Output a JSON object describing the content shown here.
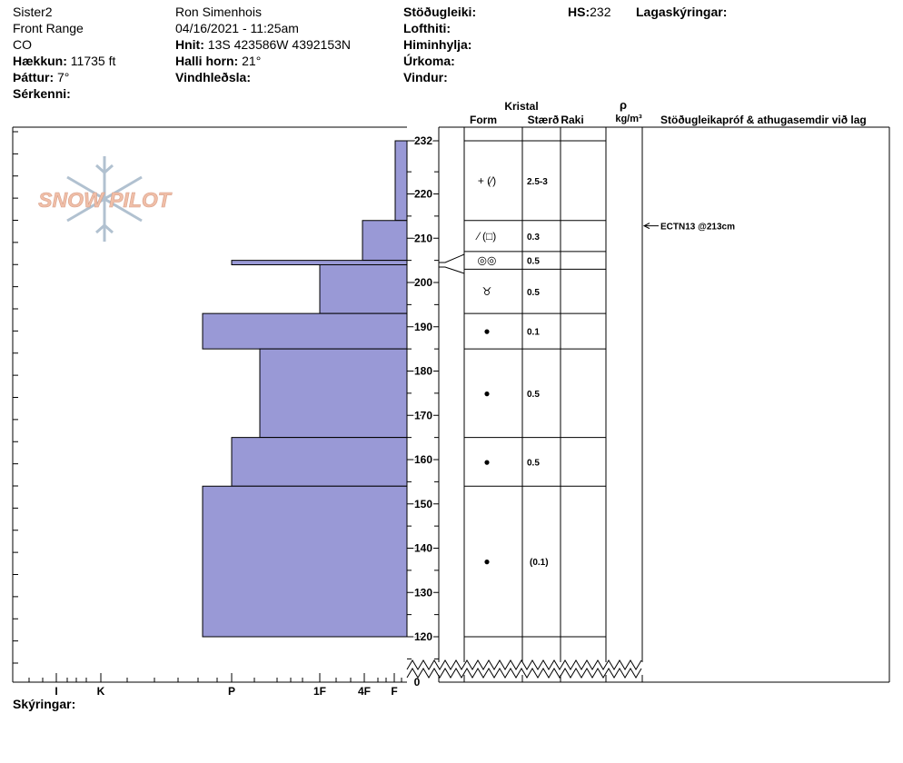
{
  "header": {
    "col1": {
      "site": "Sister2",
      "range": "Front Range",
      "state": "CO",
      "elevation_label": "Hækkun:",
      "elevation_value": "11735 ft",
      "aspect_label": "Þáttur:",
      "aspect_value": "7°",
      "features_label": "Sérkenni:"
    },
    "col2": {
      "observer": "Ron Simenhois",
      "datetime": "04/16/2021 - 11:25am",
      "coords_label": "Hnit:",
      "coords_value": "13S 423586W 4392153N",
      "slope_label": "Halli horn:",
      "slope_value": "21°",
      "wind_loading_label": "Vindhleðsla:"
    },
    "col3": {
      "stability_label": "Stöðugleiki:",
      "air_temp_label": "Lofthiti:",
      "sky_label": "Himinhylja:",
      "precip_label": "Úrkoma:",
      "wind_label": "Vindur:"
    },
    "hs_label": "HS:",
    "hs_value": "232",
    "layer_notes_label": "Lagaskýringar:"
  },
  "columns": {
    "crystal": "Kristal",
    "form": "Form",
    "size": "Stærð",
    "moisture": "Raki",
    "rho": "ρ",
    "density_unit": "kg/m³",
    "stability_comments": "Stöðugleikapróf & athugasemdir við lag"
  },
  "footer": {
    "comments_label": "Skýringar:"
  },
  "logo_text": "SNOW PILOT",
  "colors": {
    "hardness_fill": "#9999D6",
    "logo": "#F0BFA8",
    "snowflake": "#A9BBCC"
  },
  "chart_data": {
    "type": "snow_profile",
    "y_axis": {
      "ticks": [
        120,
        130,
        140,
        150,
        160,
        170,
        180,
        190,
        200,
        210,
        220,
        232
      ],
      "zero_label": "0",
      "ylim": [
        110,
        236
      ],
      "break_below": 120
    },
    "hardness_axis": {
      "labels": [
        "I",
        "K",
        "P",
        "1F",
        "4F",
        "F"
      ]
    },
    "hardness_layers": [
      {
        "top": 232,
        "bottom": 214,
        "hardness": "F+"
      },
      {
        "top": 214,
        "bottom": 205,
        "hardness": "4F+"
      },
      {
        "top": 205,
        "bottom": 204,
        "hardness": "P"
      },
      {
        "top": 204,
        "bottom": 193,
        "hardness": "1F"
      },
      {
        "top": 193,
        "bottom": 185,
        "hardness": "P-"
      },
      {
        "top": 185,
        "bottom": 165,
        "hardness": "P+"
      },
      {
        "top": 165,
        "bottom": 154,
        "hardness": "P"
      },
      {
        "top": 154,
        "bottom": 120,
        "hardness": "P-"
      }
    ],
    "layers": [
      {
        "top": 232,
        "bottom": 214,
        "form": "+ (⁄)",
        "size": "2.5-3"
      },
      {
        "top": 214,
        "bottom": 207,
        "form": "⁄ (□)",
        "size": "0.3"
      },
      {
        "top": 207,
        "bottom": 203,
        "form": "◎◎",
        "size": "0.5"
      },
      {
        "top": 203,
        "bottom": 193,
        "form": "♉",
        "size": "0.5"
      },
      {
        "top": 193,
        "bottom": 185,
        "form": "●",
        "size": "0.1"
      },
      {
        "top": 185,
        "bottom": 165,
        "form": "●",
        "size": "0.5"
      },
      {
        "top": 165,
        "bottom": 154,
        "form": "●",
        "size": "0.5"
      },
      {
        "top": 154,
        "bottom": 120,
        "form": "●",
        "size": "(0.1)"
      }
    ],
    "tests": [
      {
        "depth": 213,
        "text": "ECTN13 @213cm"
      }
    ]
  }
}
